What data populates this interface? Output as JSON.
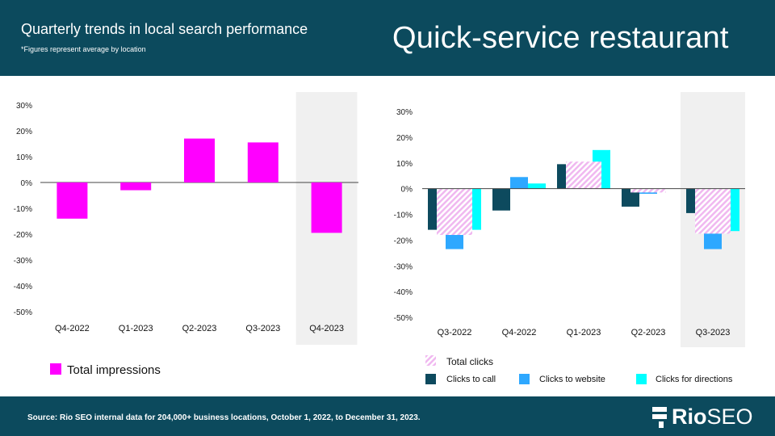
{
  "header": {
    "title": "Quarterly trends in local search performance",
    "subtitle": "*Figures represent average by location",
    "segment": "Quick-service restaurant"
  },
  "footer": {
    "source": "Source: Rio SEO internal data for 204,000+ business locations, October 1, 2022, to December 31, 2023.",
    "logo_bold": "Rio",
    "logo_light": "SEO"
  },
  "colors": {
    "header_bg": "#0c4a5d",
    "impressions": "#ff00ff",
    "calls": "#0d4a5e",
    "website": "#2ea8ff",
    "directions": "#00ffff",
    "total_clicks": "#f0b8f0",
    "highlight": "#f0f0f0"
  },
  "chart_data": [
    {
      "type": "bar",
      "title": "",
      "categories": [
        "Q4-2022",
        "Q1-2023",
        "Q2-2023",
        "Q3-2023",
        "Q4-2023"
      ],
      "series": [
        {
          "name": "Total impressions",
          "values": [
            -14,
            -3,
            17,
            15.5,
            -19.5
          ]
        }
      ],
      "ylim": [
        -50,
        30
      ],
      "yticks": [
        "30%",
        "20%",
        "10%",
        "0%",
        "-10%",
        "-20%",
        "-30%",
        "-40%",
        "-50%"
      ],
      "highlighted_category": "Q4-2023",
      "legend": [
        "Total impressions"
      ]
    },
    {
      "type": "bar",
      "title": "",
      "categories": [
        "Q3-2022",
        "Q4-2022",
        "Q1-2023",
        "Q2-2023",
        "Q3-2023"
      ],
      "series": [
        {
          "name": "Clicks to call",
          "values": [
            -16,
            -8.5,
            9.5,
            -7,
            -9.5
          ]
        },
        {
          "name": "Clicks to website",
          "values": [
            -23.5,
            4.5,
            2.5,
            -2,
            -23.5
          ]
        },
        {
          "name": "Clicks for directions",
          "values": [
            -16,
            2,
            15,
            0,
            -16.5
          ]
        },
        {
          "name": "Total clicks",
          "values": [
            -18,
            0,
            10.5,
            -1.5,
            -17.5
          ]
        }
      ],
      "ylim": [
        -50,
        30
      ],
      "yticks": [
        "30%",
        "20%",
        "10%",
        "0%",
        "-10%",
        "-20%",
        "-30%",
        "-40%",
        "-50%"
      ],
      "highlighted_category": "Q3-2023",
      "legend": [
        "Total clicks",
        "Clicks to call",
        "Clicks to website",
        "Clicks for directions"
      ]
    }
  ]
}
